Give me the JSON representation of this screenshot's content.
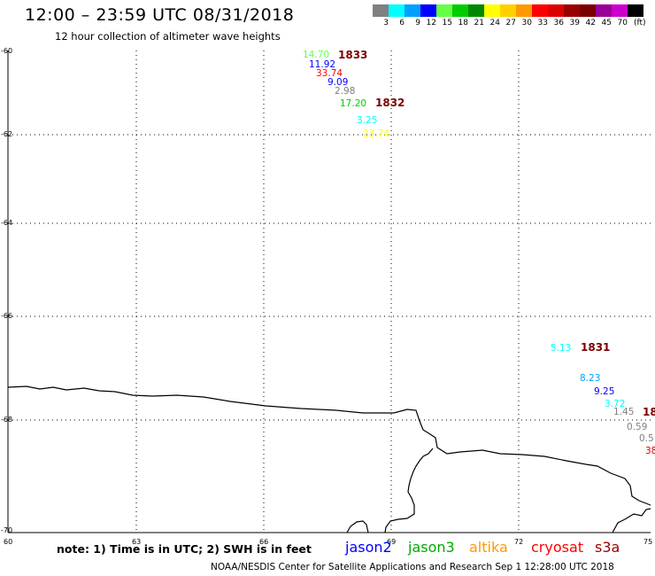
{
  "header": {
    "title": "12:00 – 23:59 UTC 08/31/2018",
    "subtitle": "12 hour collection of altimeter wave heights"
  },
  "legend": {
    "unit": "(ft)",
    "items": [
      {
        "label": "3",
        "color": "#808080"
      },
      {
        "label": "6",
        "color": "#00ffff"
      },
      {
        "label": "9",
        "color": "#00a0ff"
      },
      {
        "label": "12",
        "color": "#0000ff"
      },
      {
        "label": "15",
        "color": "#66ff44"
      },
      {
        "label": "18",
        "color": "#00cc00"
      },
      {
        "label": "21",
        "color": "#008800"
      },
      {
        "label": "24",
        "color": "#ffff00"
      },
      {
        "label": "27",
        "color": "#ffd000"
      },
      {
        "label": "30",
        "color": "#ff9900"
      },
      {
        "label": "33",
        "color": "#ff0000"
      },
      {
        "label": "36",
        "color": "#dd0000"
      },
      {
        "label": "39",
        "color": "#990000"
      },
      {
        "label": "42",
        "color": "#7a0000"
      },
      {
        "label": "45",
        "color": "#990099"
      },
      {
        "label": "70",
        "color": "#cc00cc"
      },
      {
        "label": "",
        "color": "#000000"
      }
    ]
  },
  "axes": {
    "lat_ticks": [
      "-60",
      "-62",
      "-64",
      "-66",
      "-68",
      "-70"
    ],
    "lon_ticks": [
      "60",
      "63",
      "66",
      "69",
      "72",
      "75"
    ]
  },
  "passes": [
    {
      "label": "1833",
      "color": "#7a0000"
    },
    {
      "label": "1832",
      "color": "#7a0000"
    },
    {
      "label": "1831",
      "color": "#7a0000"
    },
    {
      "label": "18",
      "color": "#7a0000"
    }
  ],
  "observations": [
    {
      "value": "14.70",
      "color": "#66ff44"
    },
    {
      "value": "11.92",
      "color": "#0000ff"
    },
    {
      "value": "33.74",
      "color": "#ff0000"
    },
    {
      "value": "9.09",
      "color": "#0000ff"
    },
    {
      "value": "2.98",
      "color": "#808080"
    },
    {
      "value": "17.20",
      "color": "#00cc00"
    },
    {
      "value": "3.25",
      "color": "#00ffff"
    },
    {
      "value": "23.74",
      "color": "#ffff00"
    },
    {
      "value": "5.13",
      "color": "#00ffff"
    },
    {
      "value": "8.23",
      "color": "#00a0ff"
    },
    {
      "value": "9.25",
      "color": "#0000ff"
    },
    {
      "value": "3.72",
      "color": "#00ffff"
    },
    {
      "value": "1.45",
      "color": "#808080"
    },
    {
      "value": "0.59",
      "color": "#808080"
    },
    {
      "value": "0.5",
      "color": "#808080"
    },
    {
      "value": "38",
      "color": "#dd0000"
    }
  ],
  "footer": {
    "note": "note: 1) Time is in UTC; 2) SWH is in feet",
    "satellites": [
      {
        "name": "jason2",
        "color": "#0000ff"
      },
      {
        "name": "jason3",
        "color": "#00aa00"
      },
      {
        "name": "altika",
        "color": "#ff9900"
      },
      {
        "name": "cryosat",
        "color": "#ff0000"
      },
      {
        "name": "s3a",
        "color": "#990000"
      }
    ],
    "credit": "NOAA/NESDIS Center for Satellite Applications and Research    Sep  1 12:28:00 UTC 2018"
  }
}
